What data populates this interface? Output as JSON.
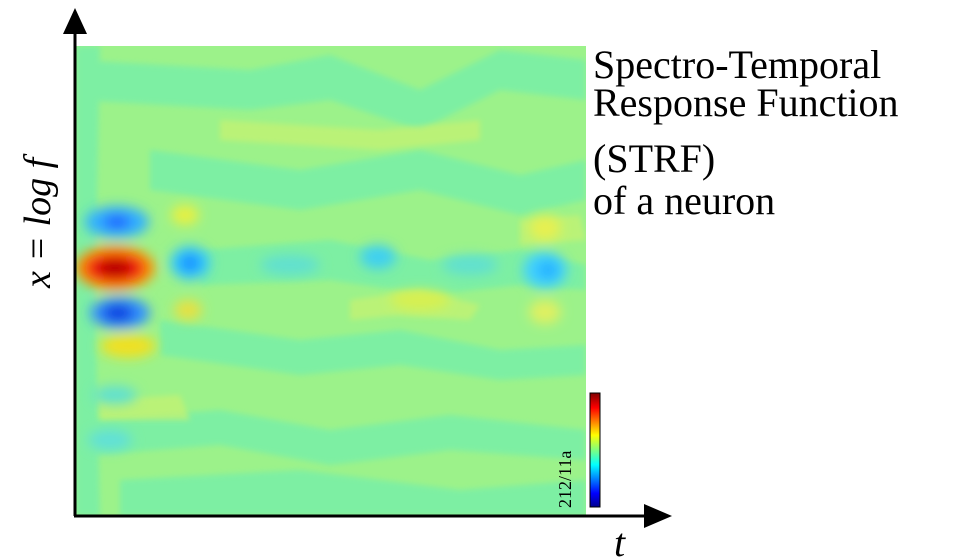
{
  "title": {
    "lines": [
      "Spectro-Temporal",
      "Response Function",
      "(STRF)",
      "of a neuron"
    ]
  },
  "axes": {
    "y_label": "x = log f",
    "x_label": "t"
  },
  "colorbar": {
    "label": "212/11a"
  }
}
